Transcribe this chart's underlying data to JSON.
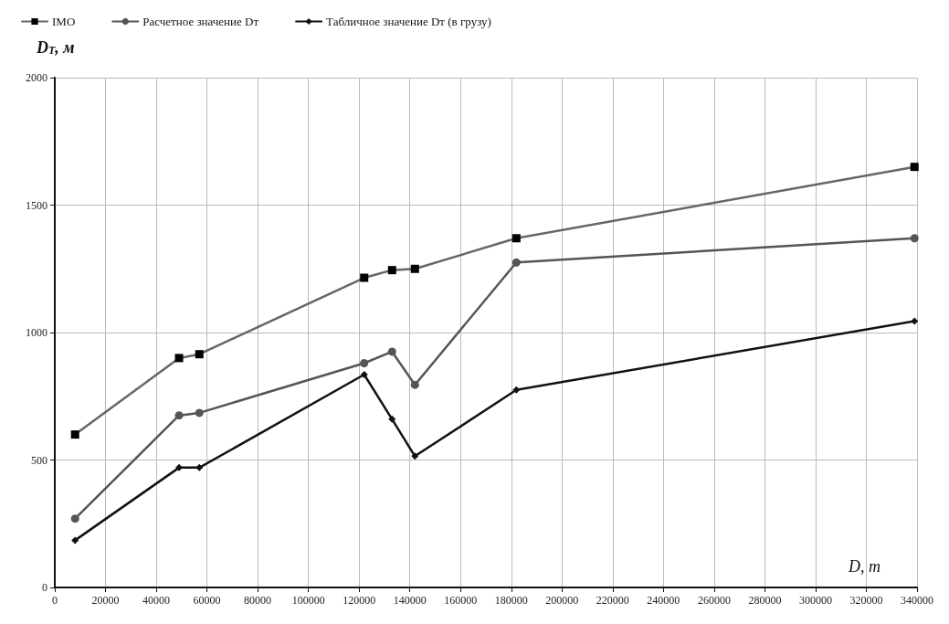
{
  "chart_data": {
    "type": "line",
    "xlabel": "D, т",
    "ylabel": "D$_{T}$, м",
    "x": [
      8000,
      49000,
      57000,
      122000,
      133000,
      142000,
      182000,
      339000
    ],
    "series": [
      {
        "name": "IMO",
        "color": "#666666",
        "marker": "square",
        "values": [
          600,
          900,
          915,
          1215,
          1245,
          1250,
          1370,
          1650
        ]
      },
      {
        "name": "Расчетное значение Dт",
        "color": "#555555",
        "marker": "circle",
        "values": [
          270,
          675,
          685,
          880,
          925,
          795,
          1275,
          1370
        ]
      },
      {
        "name": "Табличное значение Dт (в грузу)",
        "color": "#111111",
        "marker": "diamond",
        "values": [
          185,
          470,
          470,
          835,
          660,
          515,
          775,
          1045
        ]
      }
    ],
    "xlim": [
      0,
      340000
    ],
    "xticks": [
      0,
      20000,
      40000,
      60000,
      80000,
      100000,
      120000,
      140000,
      160000,
      180000,
      200000,
      220000,
      240000,
      260000,
      280000,
      300000,
      320000,
      340000
    ],
    "ylim": [
      0,
      2000
    ],
    "yticks": [
      0,
      500,
      1000,
      1500,
      2000
    ],
    "grid": true,
    "legend": "top left"
  }
}
